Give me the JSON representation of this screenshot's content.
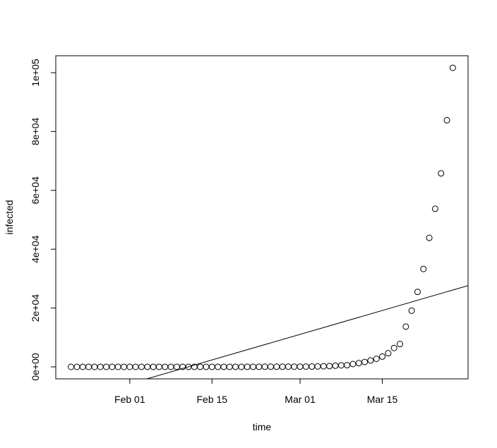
{
  "chart_data": {
    "type": "scatter",
    "xlabel": "time",
    "ylabel": "infected",
    "x": [
      22,
      23,
      24,
      25,
      26,
      27,
      28,
      29,
      30,
      31,
      32,
      33,
      34,
      35,
      36,
      37,
      38,
      39,
      40,
      41,
      42,
      43,
      44,
      45,
      46,
      47,
      48,
      49,
      50,
      51,
      52,
      53,
      54,
      55,
      56,
      57,
      58,
      59,
      60,
      61,
      62,
      63,
      64,
      65,
      66,
      67,
      68,
      69,
      70,
      71,
      72,
      73,
      74,
      75,
      76,
      77,
      78,
      79,
      80,
      81,
      82,
      83,
      84,
      85,
      86,
      87
    ],
    "values": [
      1,
      1,
      2,
      2,
      5,
      5,
      5,
      5,
      5,
      7,
      8,
      8,
      11,
      11,
      11,
      11,
      11,
      11,
      11,
      11,
      12,
      12,
      13,
      13,
      13,
      13,
      13,
      13,
      13,
      13,
      15,
      15,
      15,
      51,
      51,
      57,
      58,
      60,
      68,
      74,
      98,
      118,
      149,
      217,
      262,
      402,
      518,
      583,
      959,
      1281,
      1663,
      2179,
      2727,
      3499,
      4632,
      6421,
      7786,
      13680,
      19101,
      25493,
      33276,
      43847,
      53740,
      65778,
      83836,
      101657
    ],
    "trend_line": {
      "intercept": -24308,
      "slope": 579.6
    },
    "color": "#000000",
    "xlim": [
      19.4,
      89.6
    ],
    "xticks": [
      {
        "value": 32,
        "label": "Feb 01"
      },
      {
        "value": 46,
        "label": "Feb 15"
      },
      {
        "value": 61,
        "label": "Mar 01"
      },
      {
        "value": 75,
        "label": "Mar 15"
      }
    ],
    "ylim": [
      -4077,
      105755
    ],
    "yticks": [
      {
        "value": 0,
        "label": "0e+00"
      },
      {
        "value": 20000,
        "label": "2e+04"
      },
      {
        "value": 40000,
        "label": "4e+04"
      },
      {
        "value": 60000,
        "label": "6e+04"
      },
      {
        "value": 80000,
        "label": "8e+04"
      },
      {
        "value": 100000,
        "label": "1e+05"
      }
    ]
  }
}
